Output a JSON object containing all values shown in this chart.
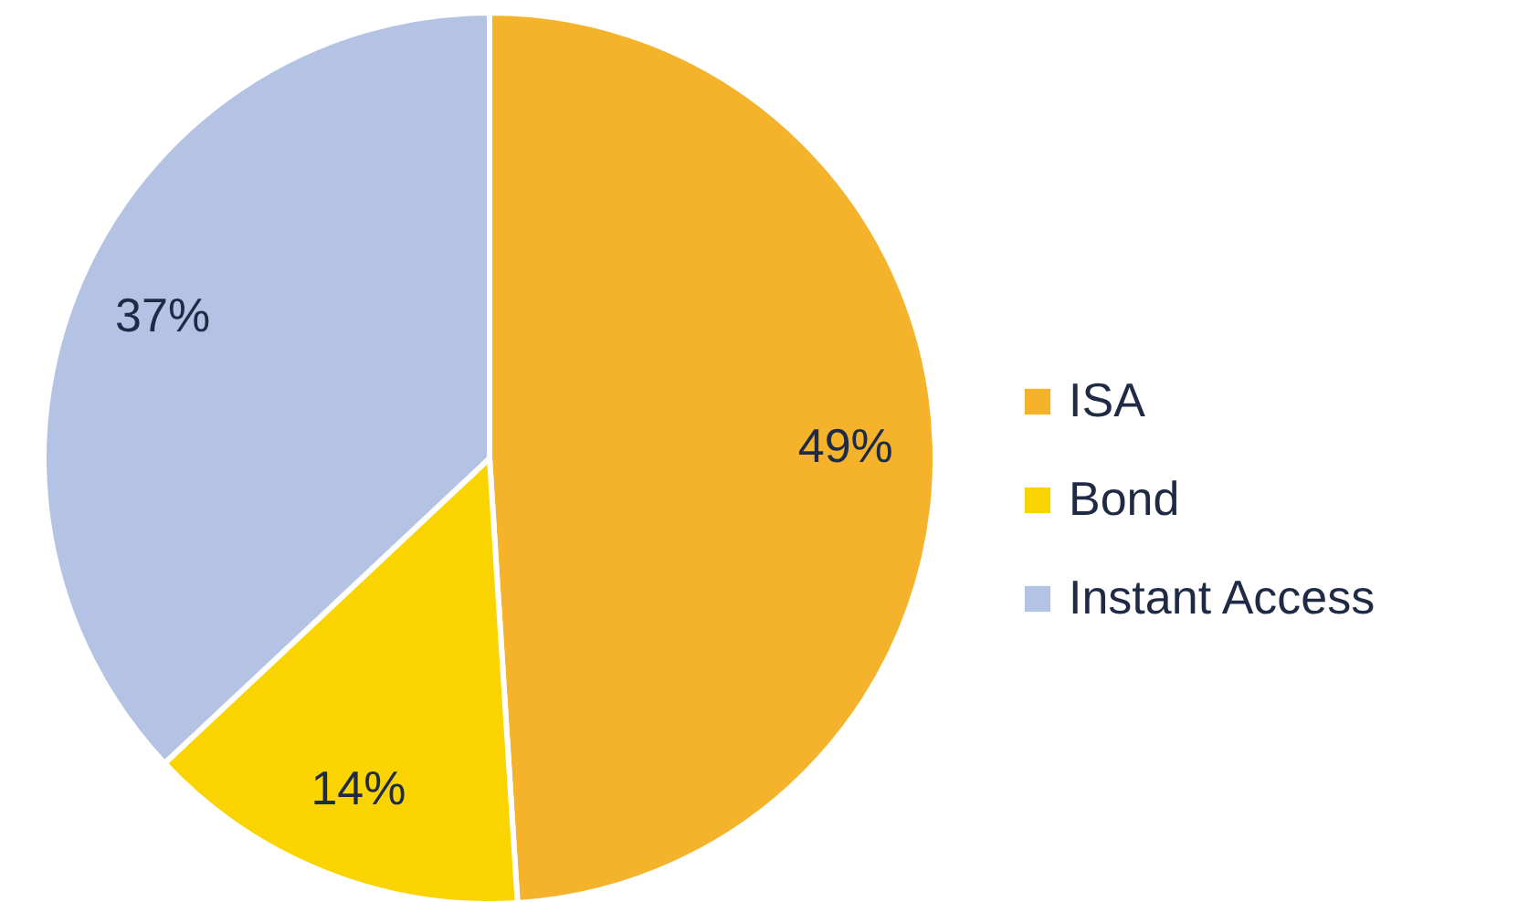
{
  "chart_data": {
    "type": "pie",
    "categories": [
      "ISA",
      "Bond",
      "Instant Access"
    ],
    "values": [
      49,
      14,
      37
    ],
    "colors": [
      "#f4b32a",
      "#fad400",
      "#b4c3e4"
    ],
    "value_labels": [
      "49%",
      "14%",
      "37%"
    ],
    "legend": "right"
  }
}
